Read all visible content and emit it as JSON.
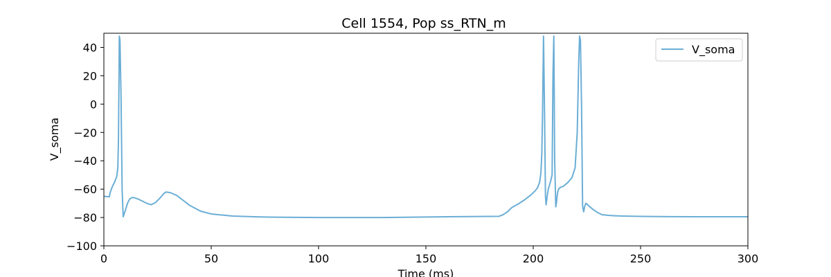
{
  "chart_data": {
    "type": "line",
    "title": "Cell 1554, Pop ss_RTN_m",
    "xlabel": "Time (ms)",
    "ylabel": "V_soma",
    "xlim": [
      0,
      300
    ],
    "ylim": [
      -100,
      50
    ],
    "xticks": [
      0,
      50,
      100,
      150,
      200,
      250,
      300
    ],
    "yticks": [
      -100,
      -80,
      -60,
      -40,
      -20,
      0,
      20,
      40
    ],
    "grid": false,
    "legend_position": "top-right",
    "series": [
      {
        "name": "V_soma",
        "color": "#6baed6",
        "x": [
          0,
          2.5,
          3,
          4,
          5,
          6,
          6.5,
          6.8,
          7.0,
          7.2,
          7.5,
          8.0,
          8.5,
          9,
          10,
          11,
          12,
          13,
          14,
          16,
          18,
          20,
          22,
          24,
          26,
          28,
          29,
          31,
          34,
          37,
          40,
          45,
          50,
          60,
          70,
          80,
          100,
          130,
          160,
          184,
          186,
          188,
          190,
          193,
          196,
          199,
          201,
          202,
          203,
          203.6,
          204,
          204.3,
          204.8,
          205.3,
          205.7,
          206,
          206.5,
          207,
          208,
          208.8,
          209.2,
          209.6,
          210,
          210.5,
          210.8,
          211.2,
          211.5,
          212,
          213,
          214,
          216,
          218,
          219.5,
          220.5,
          221.2,
          221.6,
          222,
          222.5,
          223,
          223.5,
          224,
          224.5,
          225,
          226,
          228,
          230,
          232,
          235,
          238,
          242,
          248,
          255,
          265,
          275,
          285,
          300
        ],
        "y": [
          -65,
          -65.5,
          -62,
          -58,
          -55,
          -51,
          -45,
          -25,
          10,
          48,
          45,
          5,
          -60,
          -79.5,
          -75,
          -70,
          -67,
          -66,
          -66,
          -67,
          -68.5,
          -70,
          -71,
          -69.5,
          -66.5,
          -63,
          -62,
          -62.5,
          -64.5,
          -68,
          -71.5,
          -75.5,
          -77.5,
          -79,
          -79.5,
          -79.8,
          -80,
          -80,
          -79.5,
          -79.2,
          -78,
          -76,
          -73,
          -70.5,
          -67.5,
          -64,
          -61,
          -59,
          -55,
          -48,
          -35,
          -10,
          48,
          -10,
          -65,
          -71,
          -65,
          -60,
          -55,
          -50,
          20,
          48,
          -40,
          -72.5,
          -70,
          -64,
          -61.5,
          -59.5,
          -58.5,
          -58,
          -55.5,
          -52,
          -45,
          -20,
          30,
          48,
          45,
          0,
          -72,
          -76,
          -72,
          -70,
          -70.5,
          -72,
          -74.5,
          -76.5,
          -78,
          -78.5,
          -78.8,
          -79,
          -79.2,
          -79.3,
          -79.4,
          -79.5,
          -79.5,
          -79.5
        ]
      }
    ]
  }
}
